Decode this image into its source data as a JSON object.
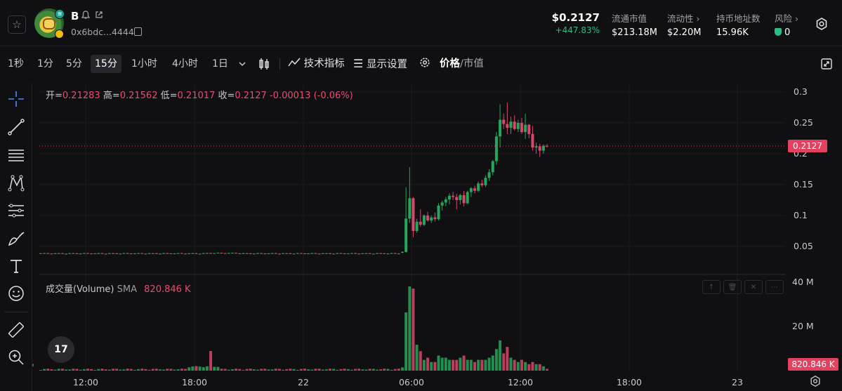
{
  "header": {
    "token_name": "B",
    "address": "0x6bdc...4444",
    "price": "$0.2127",
    "change": "+447.83%",
    "stats": [
      {
        "label": "流通市值",
        "value": "$213.18M"
      },
      {
        "label": "流动性 ›",
        "value": "$2.20M"
      },
      {
        "label": "持币地址数",
        "value": "15.96K"
      },
      {
        "label": "风险 ›",
        "value": "0"
      }
    ]
  },
  "toolbar": {
    "timeframes": [
      "1秒",
      "1分",
      "5分",
      "15分",
      "1小时",
      "4小时",
      "1日"
    ],
    "active_timeframe": "15分",
    "indicators_label": "技术指标",
    "display_label": "显示设置",
    "price_label": "价格",
    "mcap_label": "/市值"
  },
  "legend": {
    "open_label": "开=",
    "open": "0.21283",
    "high_label": "高=",
    "high": "0.21562",
    "low_label": "低=",
    "low": "0.21017",
    "close_label": "收=",
    "close": "0.2127",
    "delta": "-0.00013 (-0.06%)"
  },
  "volume_legend": {
    "name": "成交量(Volume)",
    "ma_label": "SMA",
    "value": "820.846 K"
  },
  "price_tag": "0.2127",
  "volume_tag": "820.846 K",
  "colors": {
    "up": "#26a65b",
    "down": "#d9476a",
    "accent": "#e2415f"
  },
  "chart_data": {
    "type": "candlestick",
    "price_axis_ticks": [
      "0.3",
      "0.25",
      "0.2",
      "0.15",
      "0.1",
      "0.05"
    ],
    "volume_axis_ticks": [
      "40 M",
      "20 M"
    ],
    "time_axis_ticks": [
      "12:00",
      "18:00",
      "22",
      "06:00",
      "12:00",
      "18:00",
      "23"
    ],
    "last_price": 0.2127
  }
}
